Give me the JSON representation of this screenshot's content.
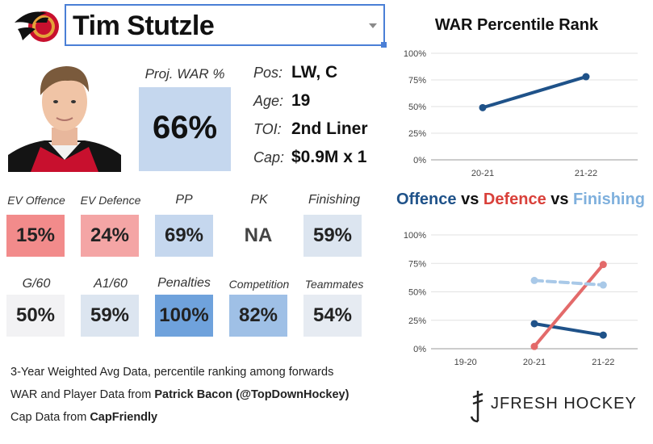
{
  "header": {
    "player_name": "Tim Stutzle"
  },
  "proj_war": {
    "label": "Proj. WAR %",
    "value": "66%"
  },
  "info": [
    {
      "label": "Pos:",
      "value": "LW, C"
    },
    {
      "label": "Age:",
      "value": "19"
    },
    {
      "label": "TOI:",
      "value": "2nd Liner"
    },
    {
      "label": "Cap:",
      "value": "$0.9M x 1"
    }
  ],
  "stats_row1": [
    {
      "label": "EV Offence",
      "value": "15%",
      "color": "#f28b8b"
    },
    {
      "label": "EV Defence",
      "value": "24%",
      "color": "#f4a5a5"
    },
    {
      "label": "PP",
      "value": "69%",
      "color": "#c5d7ee"
    },
    {
      "label": "PK",
      "value": "NA",
      "color": "#ffffff"
    },
    {
      "label": "Finishing",
      "value": "59%",
      "color": "#dce5f0"
    }
  ],
  "stats_row2": [
    {
      "label": "G/60",
      "value": "50%",
      "color": "#f2f2f4"
    },
    {
      "label": "A1/60",
      "value": "59%",
      "color": "#dce5f0"
    },
    {
      "label": "Penalties",
      "value": "100%",
      "color": "#6fa2dc"
    },
    {
      "label": "Competition",
      "value": "82%",
      "color": "#9fc0e6"
    },
    {
      "label": "Teammates",
      "value": "54%",
      "color": "#e6ebf2"
    }
  ],
  "notes": {
    "line1": "3-Year Weighted Avg Data, percentile ranking among forwards",
    "line2_prefix": "WAR and Player Data from ",
    "line2_source": "Patrick Bacon (@TopDownHockey)",
    "line3_prefix": "Cap Data from ",
    "line3_source": "CapFriendly"
  },
  "brand": {
    "name": "JFRESH HOCKEY"
  },
  "chart_data": [
    {
      "type": "line",
      "title": "WAR Percentile Rank",
      "x": [
        "20-21",
        "21-22"
      ],
      "series": [
        {
          "values": [
            49,
            78
          ],
          "color": "#1f5289"
        }
      ],
      "yticks": [
        "0%",
        "25%",
        "50%",
        "75%",
        "100%"
      ],
      "ylim": [
        0,
        100
      ],
      "grid": true
    },
    {
      "type": "line",
      "title_parts": [
        {
          "text": "Offence",
          "color": "#1f5289"
        },
        {
          "text": " vs ",
          "color": "#111111"
        },
        {
          "text": "Defence",
          "color": "#d9403a"
        },
        {
          "text": " vs ",
          "color": "#111111"
        },
        {
          "text": "Finishing",
          "color": "#7fb0dd"
        }
      ],
      "x": [
        "19-20",
        "20-21",
        "21-22"
      ],
      "series": [
        {
          "name": "Offence",
          "values": [
            null,
            22,
            12
          ],
          "color": "#1f5289",
          "dashed": false
        },
        {
          "name": "Defence",
          "values": [
            null,
            2,
            74
          ],
          "color": "#e36a6a",
          "dashed": false
        },
        {
          "name": "Finishing",
          "values": [
            null,
            60,
            56
          ],
          "color": "#a9c9e8",
          "dashed": true
        }
      ],
      "yticks": [
        "0%",
        "25%",
        "50%",
        "75%",
        "100%"
      ],
      "ylim": [
        0,
        100
      ],
      "grid": true
    }
  ]
}
